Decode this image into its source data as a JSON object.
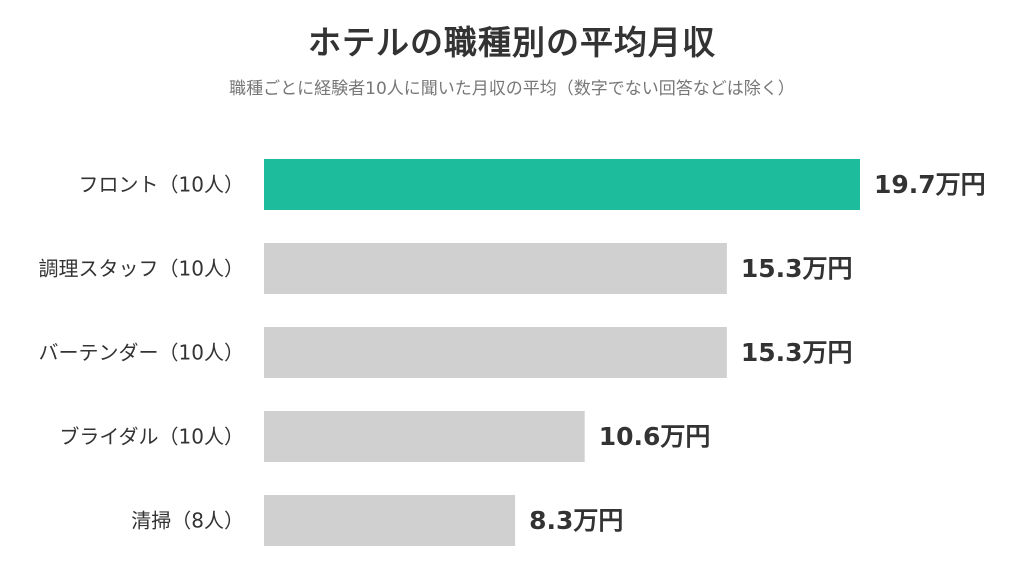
{
  "chart_data": {
    "type": "bar",
    "orientation": "horizontal",
    "title": "ホテルの職種別の平均月収",
    "subtitle": "職種ごとに経験者10人に聞いた月収の平均（数字でない回答などは除く）",
    "categories": [
      "フロント（10人）",
      "調理スタッフ（10人）",
      "バーテンダー（10人）",
      "ブライダル（10人）",
      "清掃（8人）"
    ],
    "values": [
      19.7,
      15.3,
      15.3,
      10.6,
      8.3
    ],
    "value_labels": [
      "19.7万円",
      "15.3万円",
      "15.3万円",
      "10.6万円",
      "8.3万円"
    ],
    "unit": "万円",
    "highlight_index": 0,
    "grid": false,
    "legend": "none"
  },
  "colors": {
    "highlight": "#1cbc9c",
    "default": "#d0d0d0",
    "text": "#333333",
    "subtext": "#777777"
  }
}
